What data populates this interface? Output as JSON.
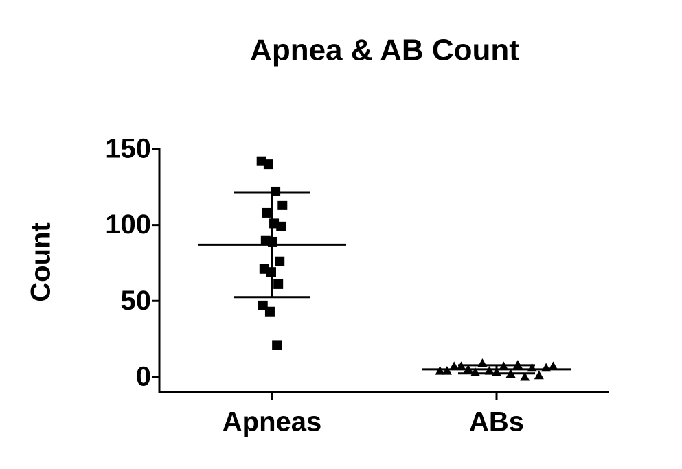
{
  "chart_data": {
    "type": "strip",
    "title": "Apnea & AB Count",
    "y_label": "Count",
    "series": [
      {
        "name": "Apneas",
        "marker": "square",
        "color": "#000000",
        "values": [
          142,
          140,
          122,
          113,
          108,
          101,
          99,
          90,
          89,
          76,
          71,
          69,
          61,
          47,
          43,
          21
        ],
        "mean": 87,
        "sd": 34.5
      },
      {
        "name": "ABs",
        "marker": "triangle",
        "color": "#000000",
        "values": [
          4,
          3,
          2,
          6,
          7,
          3,
          6,
          4,
          9,
          8,
          7,
          5,
          7,
          1,
          7,
          4,
          0
        ],
        "mean": 5,
        "sd": 2.7
      }
    ],
    "ylim": [
      -10,
      150
    ],
    "yticks": [
      0,
      50,
      100,
      150
    ]
  }
}
